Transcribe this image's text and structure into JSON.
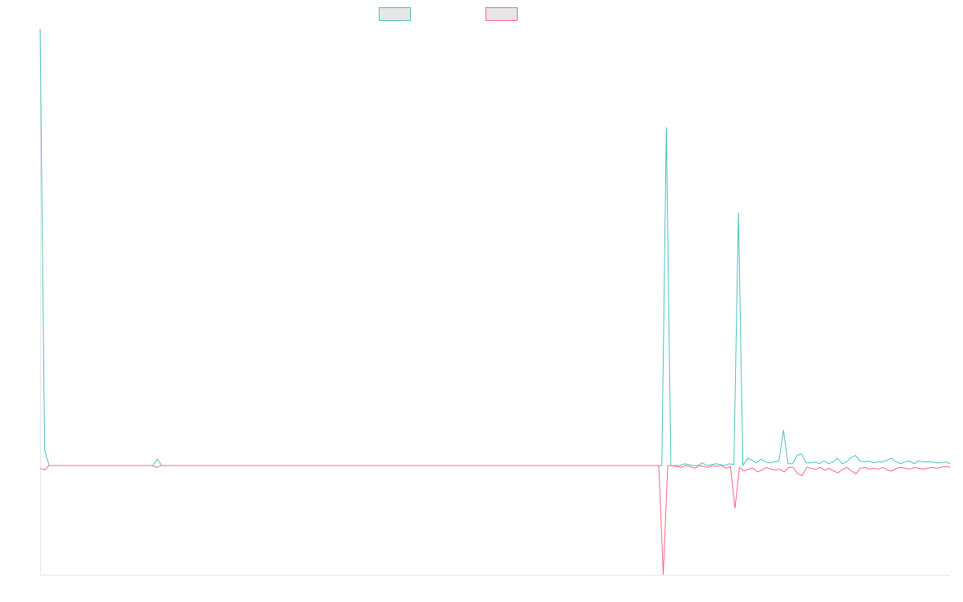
{
  "chart_data": {
    "type": "line",
    "title": "",
    "xlabel": "",
    "ylabel": "",
    "legend": "top-center",
    "grid": false,
    "ylim": [
      -1200,
      4800
    ],
    "series": [
      {
        "color": "#4bc0c0",
        "legend_fill": "#e6e6e6",
        "values": [
          4800,
          170,
          0,
          0,
          0,
          0,
          0,
          0,
          0,
          0,
          0,
          0,
          0,
          0,
          0,
          0,
          0,
          0,
          0,
          0,
          0,
          0,
          0,
          0,
          0,
          0,
          70,
          0,
          0,
          0,
          0,
          0,
          0,
          0,
          0,
          0,
          0,
          0,
          0,
          0,
          0,
          0,
          0,
          0,
          0,
          0,
          0,
          0,
          0,
          0,
          0,
          0,
          0,
          0,
          0,
          0,
          0,
          0,
          0,
          0,
          0,
          0,
          0,
          0,
          0,
          0,
          0,
          0,
          0,
          0,
          0,
          0,
          0,
          0,
          0,
          0,
          0,
          0,
          0,
          0,
          0,
          0,
          0,
          0,
          0,
          0,
          0,
          0,
          0,
          0,
          0,
          0,
          0,
          0,
          0,
          0,
          0,
          0,
          0,
          0,
          0,
          0,
          0,
          0,
          0,
          0,
          0,
          0,
          0,
          0,
          0,
          0,
          0,
          0,
          0,
          0,
          0,
          0,
          0,
          0,
          0,
          0,
          0,
          0,
          0,
          0,
          0,
          0,
          0,
          0,
          0,
          0,
          0,
          0,
          0,
          0,
          0,
          0,
          0,
          3720,
          0,
          0,
          0,
          20,
          10,
          0,
          0,
          30,
          0,
          10,
          20,
          10,
          0,
          20,
          10,
          2780,
          0,
          80,
          60,
          30,
          70,
          40,
          30,
          40,
          50,
          390,
          20,
          20,
          110,
          130,
          30,
          30,
          40,
          20,
          50,
          20,
          40,
          80,
          20,
          40,
          90,
          110,
          50,
          40,
          50,
          30,
          40,
          40,
          60,
          80,
          40,
          20,
          40,
          50,
          20,
          50,
          40,
          40,
          40,
          30,
          30,
          40,
          20
        ]
      },
      {
        "color": "#ff6384",
        "legend_fill": "#e6e6e6",
        "values": [
          -30,
          -50,
          0,
          0,
          0,
          0,
          0,
          0,
          0,
          0,
          0,
          0,
          0,
          0,
          0,
          0,
          0,
          0,
          0,
          0,
          0,
          0,
          0,
          0,
          0,
          0,
          -20,
          0,
          0,
          0,
          0,
          0,
          0,
          0,
          0,
          0,
          0,
          0,
          0,
          0,
          0,
          0,
          0,
          0,
          0,
          0,
          0,
          0,
          0,
          0,
          0,
          0,
          0,
          0,
          0,
          0,
          0,
          0,
          0,
          0,
          0,
          0,
          0,
          0,
          0,
          0,
          0,
          0,
          0,
          0,
          0,
          0,
          0,
          0,
          0,
          0,
          0,
          0,
          0,
          0,
          0,
          0,
          0,
          0,
          0,
          0,
          0,
          0,
          0,
          0,
          0,
          0,
          0,
          0,
          0,
          0,
          0,
          0,
          0,
          0,
          0,
          0,
          0,
          0,
          0,
          0,
          0,
          0,
          0,
          0,
          0,
          0,
          0,
          0,
          0,
          0,
          0,
          0,
          0,
          0,
          0,
          0,
          0,
          0,
          0,
          0,
          0,
          0,
          0,
          0,
          0,
          0,
          0,
          0,
          0,
          0,
          0,
          0,
          0,
          -1200,
          0,
          0,
          -10,
          -20,
          0,
          -10,
          -30,
          0,
          -10,
          -20,
          0,
          -10,
          0,
          -30,
          -10,
          -470,
          -20,
          -60,
          -40,
          -30,
          -70,
          -50,
          -20,
          -40,
          -50,
          -40,
          -70,
          -20,
          -20,
          -90,
          -110,
          -20,
          -30,
          -40,
          -20,
          -50,
          -30,
          -60,
          -80,
          -40,
          -20,
          -60,
          -90,
          -30,
          -20,
          -40,
          -30,
          -40,
          -20,
          -50,
          -60,
          -30,
          -20,
          -30,
          -40,
          -20,
          -30,
          -40,
          -30,
          -20,
          -30,
          -20,
          -10,
          -20
        ]
      }
    ]
  }
}
